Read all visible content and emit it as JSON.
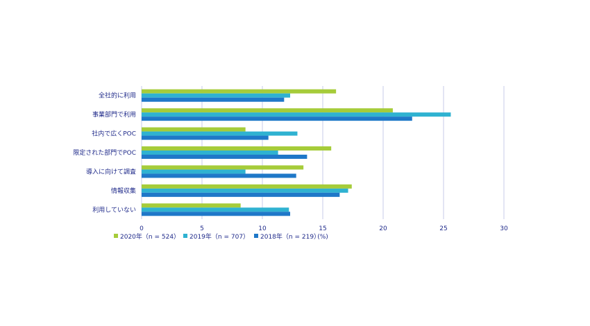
{
  "chart_data": {
    "type": "bar",
    "orientation": "horizontal",
    "categories": [
      "全社的に利用",
      "事業部門で利用",
      "社内で広くPOC",
      "限定された部門でPOC",
      "導入に向けて調査",
      "情報収集",
      "利用していない"
    ],
    "series": [
      {
        "name": "2020年（n = 524）",
        "color": "#a6cc3a",
        "values": [
          16.1,
          20.8,
          8.6,
          15.7,
          13.4,
          17.4,
          8.2
        ]
      },
      {
        "name": "2019年（n = 707）",
        "color": "#2fb2d1",
        "values": [
          12.3,
          25.6,
          12.9,
          11.3,
          8.6,
          17.1,
          12.2
        ]
      },
      {
        "name": "2018年（n = 219）",
        "color": "#1f78c8",
        "values": [
          11.8,
          22.4,
          10.5,
          13.7,
          12.8,
          16.4,
          12.3
        ]
      }
    ],
    "x_ticks": [
      0,
      5,
      10,
      15,
      20,
      25,
      30
    ],
    "xlim": [
      0,
      30
    ],
    "xunit": "(%)",
    "grid": true,
    "legend_position": "bottom"
  }
}
